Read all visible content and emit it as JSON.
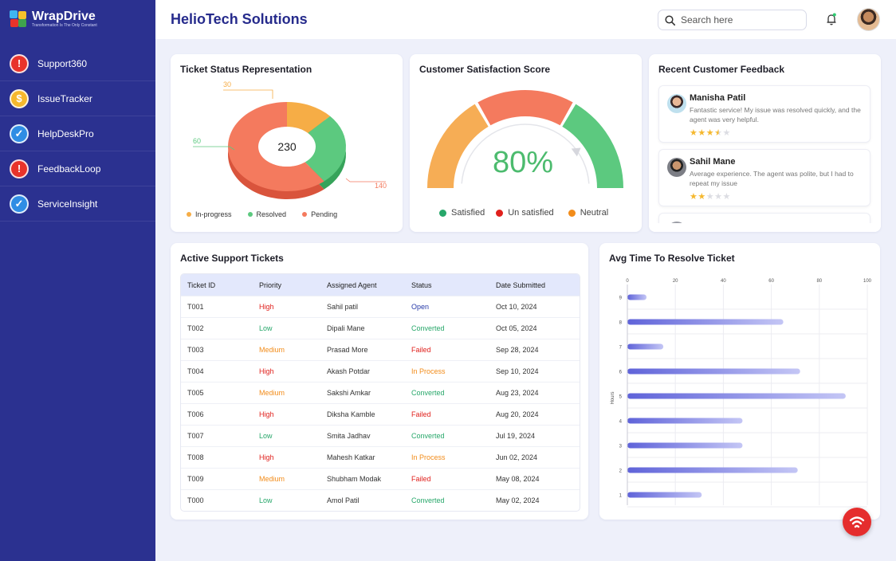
{
  "brand": {
    "name": "WrapDrive",
    "tagline": "Transformation Is The Only Constant"
  },
  "sidebar": {
    "items": [
      {
        "label": "Support360",
        "icon": "exclamation-icon",
        "color": "#e8332b"
      },
      {
        "label": "IssueTracker",
        "icon": "money-bag-icon",
        "color": "#f5b82e"
      },
      {
        "label": "HelpDeskPro",
        "icon": "check-circle-icon",
        "color": "#2f8de4"
      },
      {
        "label": "FeedbackLoop",
        "icon": "search-alert-icon",
        "color": "#e8332b"
      },
      {
        "label": "ServiceInsight",
        "icon": "shield-check-icon",
        "color": "#2f8de4"
      }
    ]
  },
  "header": {
    "title": "HelioTech Solutions",
    "search_placeholder": "Search here"
  },
  "ticket_status": {
    "title": "Ticket Status Representation",
    "total": "230",
    "segments": [
      {
        "label": "In-progress",
        "value": 30,
        "color": "#f6ad46"
      },
      {
        "label": "Resolved",
        "value": 60,
        "color": "#5cc97f"
      },
      {
        "label": "Pending",
        "value": 140,
        "color": "#f47a5e"
      }
    ],
    "value_labels": {
      "in_progress": "30",
      "resolved": "60",
      "pending": "140"
    }
  },
  "satisfaction": {
    "title": "Customer Satisfaction Score",
    "value": "80%",
    "percent": 80,
    "legend": [
      {
        "label": "Satisfied",
        "color": "#27a76a"
      },
      {
        "label": "Un satisfied",
        "color": "#e0201c"
      },
      {
        "label": "Neutral",
        "color": "#f28c1a"
      }
    ]
  },
  "feedback": {
    "title": "Recent Customer Feedback",
    "items": [
      {
        "name": "Manisha Patil",
        "text": "Fantastic service! My issue was resolved quickly, and the agent was very helpful.",
        "rating": 3.5,
        "stars": "★★★★★"
      },
      {
        "name": "Sahil Mane",
        "text": "Average experience. The agent was polite, but I had to repeat my issue",
        "rating": 2,
        "stars": "★★★★★"
      }
    ]
  },
  "tickets": {
    "title": "Active Support Tickets",
    "columns": [
      "Ticket ID",
      "Priority",
      "Assigned Agent",
      "Status",
      "Date Submitted"
    ],
    "rows": [
      {
        "id": "T001",
        "priority": "High",
        "agent": "Sahil patil",
        "status": "Open",
        "date": "Oct 10, 2024"
      },
      {
        "id": "T002",
        "priority": "Low",
        "agent": "Dipali Mane",
        "status": "Converted",
        "date": "Oct 05, 2024"
      },
      {
        "id": "T003",
        "priority": "Medium",
        "agent": "Prasad More",
        "status": "Failed",
        "date": "Sep 28, 2024"
      },
      {
        "id": "T004",
        "priority": "High",
        "agent": "Akash Potdar",
        "status": "In Process",
        "date": "Sep 10, 2024"
      },
      {
        "id": "T005",
        "priority": "Medium",
        "agent": "Sakshi Amkar",
        "status": "Converted",
        "date": "Aug 23, 2024"
      },
      {
        "id": "T006",
        "priority": "High",
        "agent": "Diksha Kamble",
        "status": "Failed",
        "date": "Aug 20, 2024"
      },
      {
        "id": "T007",
        "priority": "Low",
        "agent": "Smita Jadhav",
        "status": "Converted",
        "date": "Jul 19, 2024"
      },
      {
        "id": "T008",
        "priority": "High",
        "agent": "Mahesh Katkar",
        "status": "In Process",
        "date": "Jun 02, 2024"
      },
      {
        "id": "T009",
        "priority": "Medium",
        "agent": "Shubham Modak",
        "status": "Failed",
        "date": "May 08, 2024"
      },
      {
        "id": "T000",
        "priority": "Low",
        "agent": "Amol Patil",
        "status": "Converted",
        "date": "May 02, 2024"
      }
    ],
    "priority_colors": {
      "High": "#e0201c",
      "Low": "#27a76a",
      "Medium": "#f28c1a"
    },
    "status_colors": {
      "Open": "#2639a8",
      "Converted": "#27a76a",
      "Failed": "#e0201c",
      "In Process": "#f28c1a"
    }
  },
  "chart_data": {
    "type": "bar",
    "orientation": "horizontal",
    "title": "Avg Time To Resolve Ticket",
    "ylabel": "Hours",
    "xlabel": "",
    "categories": [
      "9",
      "8",
      "7",
      "6",
      "5",
      "4",
      "3",
      "2",
      "1"
    ],
    "values": [
      8,
      65,
      15,
      72,
      91,
      48,
      48,
      71,
      31
    ],
    "xlim": [
      0,
      100
    ],
    "xticks": [
      "0",
      "20",
      "40",
      "60",
      "80",
      "100"
    ],
    "grid": true,
    "bar_color_start": "#5f63d9",
    "bar_color_end": "#c4c6f5"
  }
}
